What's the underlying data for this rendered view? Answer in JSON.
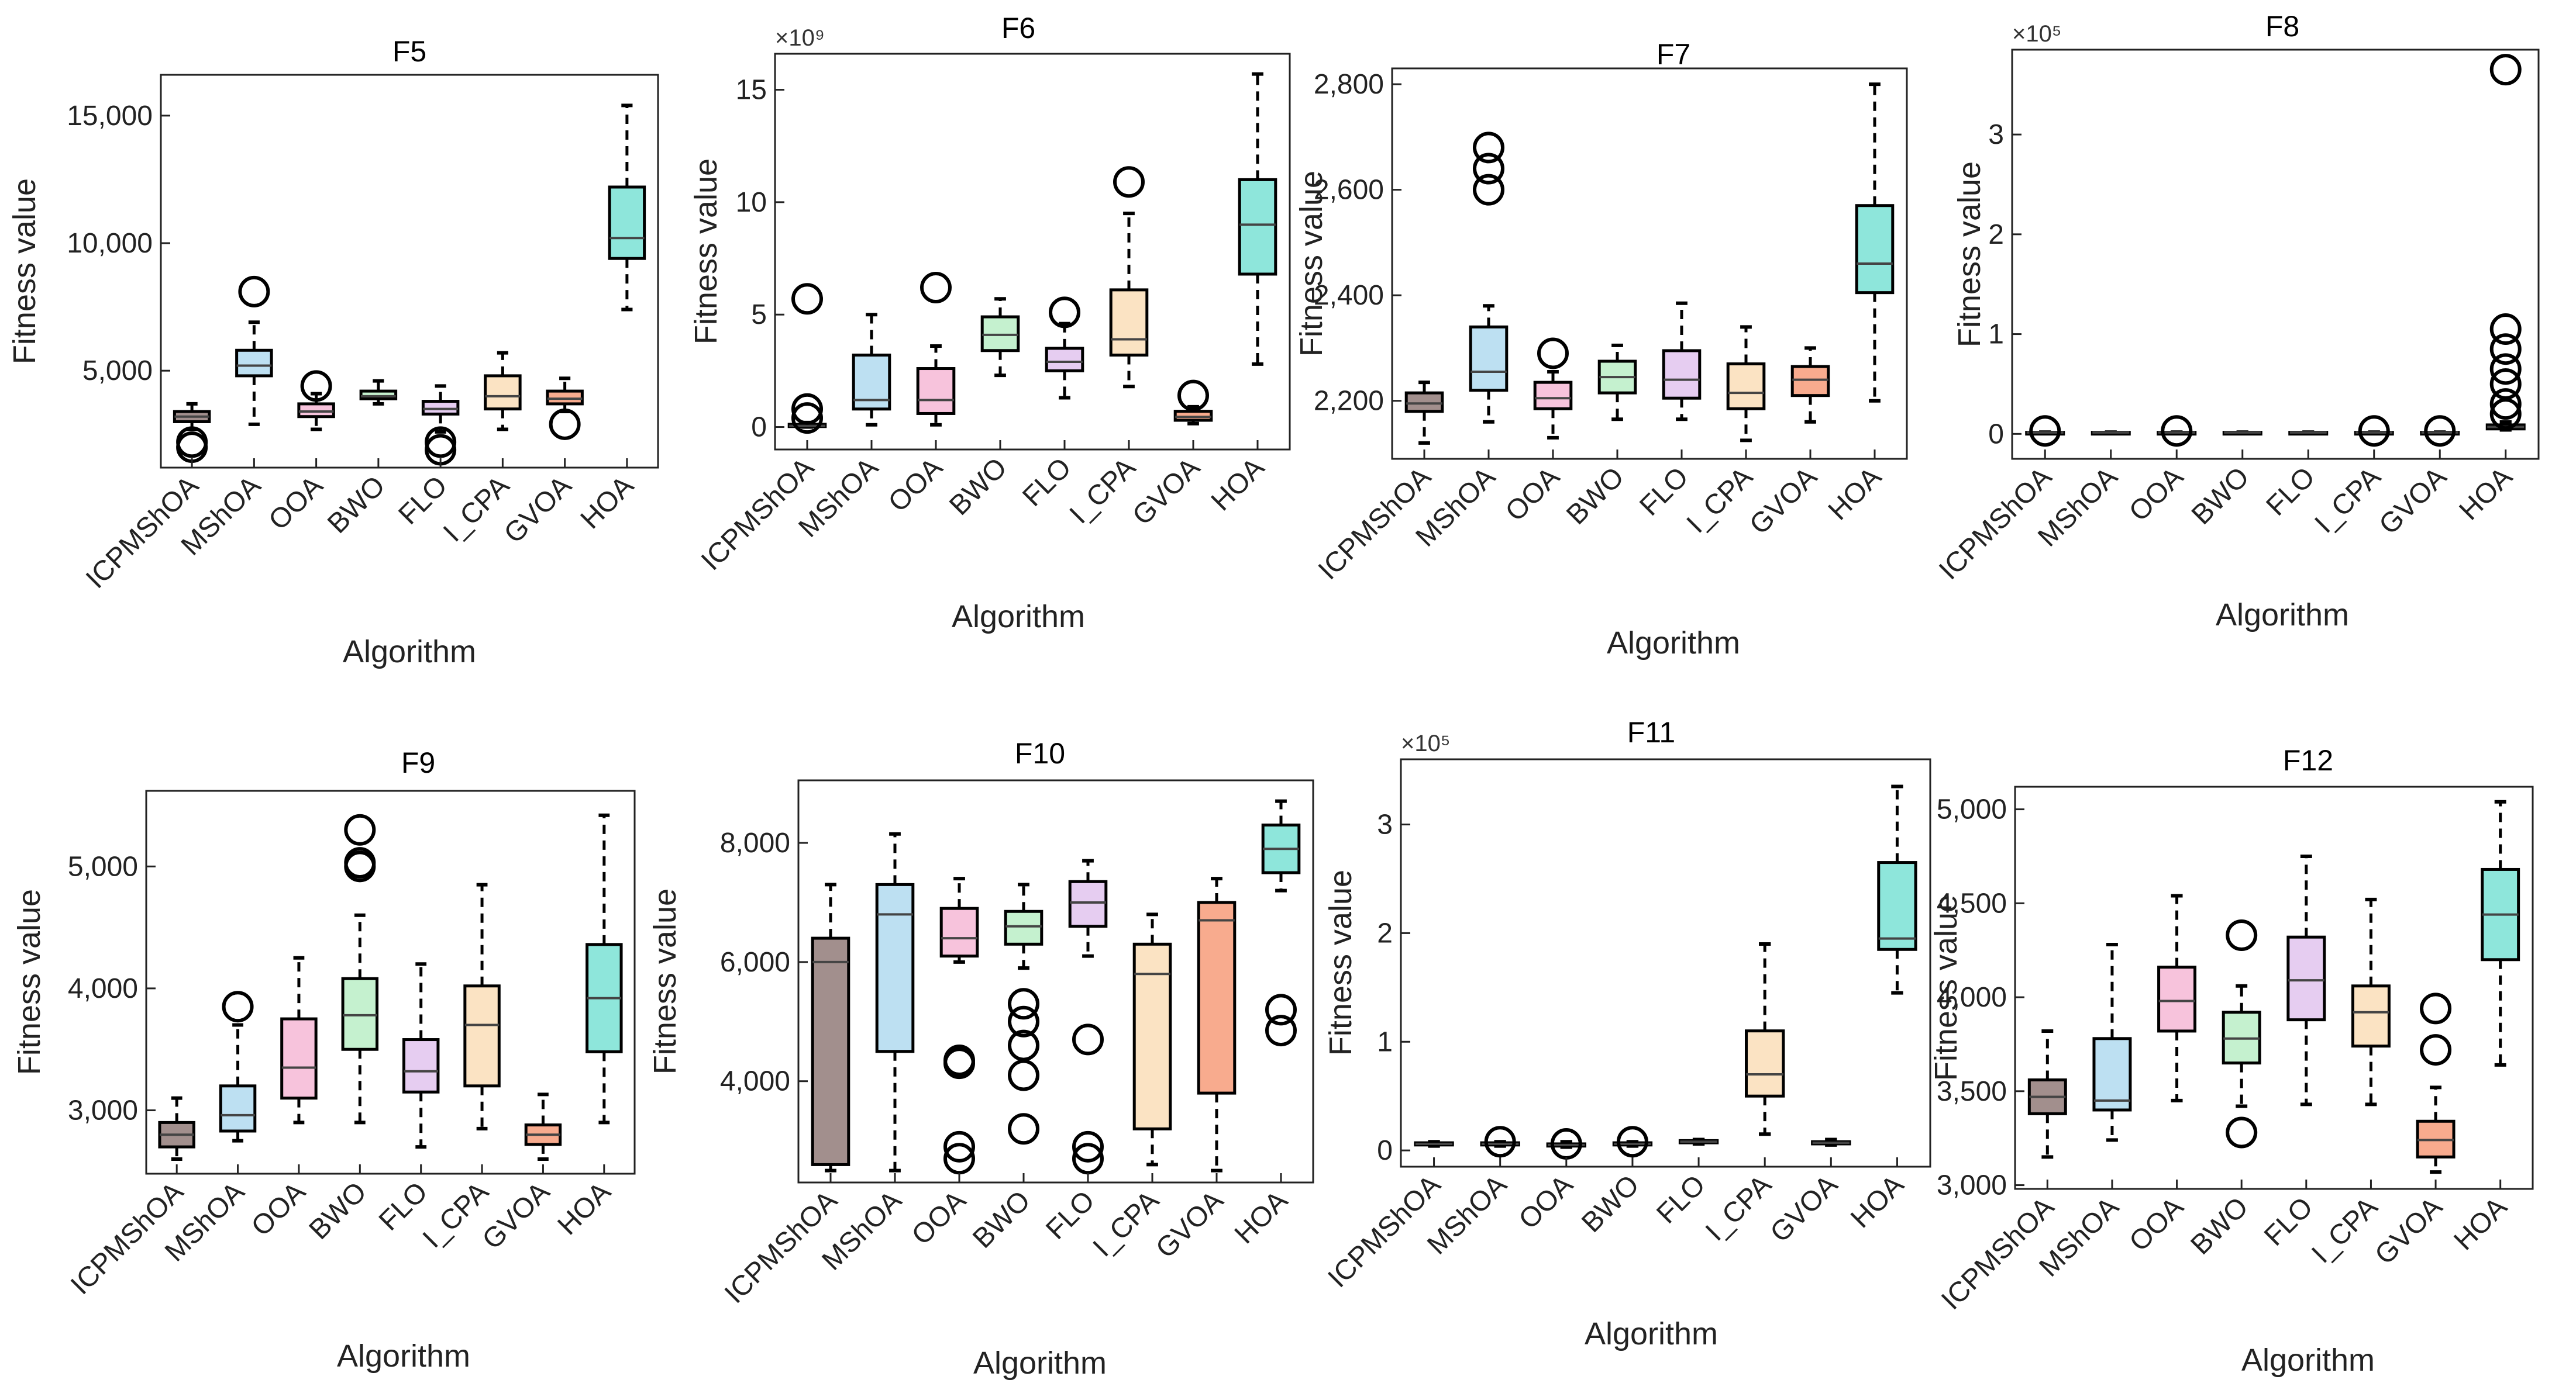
{
  "figure": {
    "colors": {
      "ICPMShOA": "#a28f8d",
      "MShOA": "#bde0f2",
      "OOA": "#f7c3dc",
      "BWO": "#c5f1cf",
      "FLO": "#e6cdf1",
      "I_CPA": "#fbe3c3",
      "GVOA": "#f8ab8e",
      "HOA": "#8ee6db"
    }
  },
  "chart_data": [
    {
      "id": "F5",
      "type": "boxplot",
      "title": "F5",
      "xlabel": "Algorithm",
      "ylabel": "Fitness value",
      "ylim": [
        1200,
        16600
      ],
      "yticks": [
        5000,
        10000,
        15000
      ],
      "ytick_labels": [
        "5,000",
        "10,000",
        "15,000"
      ],
      "multiplier": "",
      "categories": [
        "ICPMShOA",
        "MShOA",
        "OOA",
        "BWO",
        "FLO",
        "I_CPA",
        "GVOA",
        "HOA"
      ],
      "boxes": [
        {
          "whislo": 2700,
          "q1": 3000,
          "med": 3200,
          "q3": 3400,
          "whishi": 3700,
          "fliers": [
            2000,
            2200
          ]
        },
        {
          "whislo": 2900,
          "q1": 4800,
          "med": 5200,
          "q3": 5800,
          "whishi": 6900,
          "fliers": [
            8100
          ]
        },
        {
          "whislo": 2700,
          "q1": 3200,
          "med": 3400,
          "q3": 3700,
          "whishi": 4100,
          "fliers": [
            4400
          ]
        },
        {
          "whislo": 3700,
          "q1": 3900,
          "med": 4000,
          "q3": 4200,
          "whishi": 4600,
          "fliers": []
        },
        {
          "whislo": 2600,
          "q1": 3300,
          "med": 3500,
          "q3": 3800,
          "whishi": 4400,
          "fliers": [
            1900,
            2200
          ]
        },
        {
          "whislo": 2700,
          "q1": 3500,
          "med": 4000,
          "q3": 4800,
          "whishi": 5700,
          "fliers": []
        },
        {
          "whislo": 3400,
          "q1": 3700,
          "med": 3900,
          "q3": 4200,
          "whishi": 4700,
          "fliers": [
            2900
          ]
        },
        {
          "whislo": 7400,
          "q1": 9400,
          "med": 10200,
          "q3": 12200,
          "whishi": 15400,
          "fliers": []
        }
      ]
    },
    {
      "id": "F6",
      "type": "boxplot",
      "title": "F6",
      "xlabel": "Algorithm",
      "ylabel": "Fitness value",
      "ylim": [
        -1,
        16.6
      ],
      "yticks": [
        0,
        5,
        10,
        15
      ],
      "ytick_labels": [
        "0",
        "5",
        "10",
        "15"
      ],
      "multiplier": "×10⁹",
      "categories": [
        "ICPMShOA",
        "MShOA",
        "OOA",
        "BWO",
        "FLO",
        "I_CPA",
        "GVOA",
        "HOA"
      ],
      "boxes": [
        {
          "whislo": 0,
          "q1": 0.02,
          "med": 0.05,
          "q3": 0.12,
          "whishi": 0.2,
          "fliers": [
            0.4,
            0.8,
            5.7
          ]
        },
        {
          "whislo": 0.1,
          "q1": 0.8,
          "med": 1.2,
          "q3": 3.2,
          "whishi": 5.0,
          "fliers": []
        },
        {
          "whislo": 0.1,
          "q1": 0.6,
          "med": 1.2,
          "q3": 2.6,
          "whishi": 3.6,
          "fliers": [
            6.2
          ]
        },
        {
          "whislo": 2.3,
          "q1": 3.4,
          "med": 4.1,
          "q3": 4.9,
          "whishi": 5.7,
          "fliers": []
        },
        {
          "whislo": 1.3,
          "q1": 2.5,
          "med": 2.9,
          "q3": 3.5,
          "whishi": 4.6,
          "fliers": [
            5.1
          ]
        },
        {
          "whislo": 1.8,
          "q1": 3.2,
          "med": 3.9,
          "q3": 6.1,
          "whishi": 9.5,
          "fliers": [
            10.9
          ]
        },
        {
          "whislo": 0.15,
          "q1": 0.3,
          "med": 0.45,
          "q3": 0.7,
          "whishi": 0.9,
          "fliers": [
            1.4
          ]
        },
        {
          "whislo": 2.8,
          "q1": 6.8,
          "med": 9.0,
          "q3": 11.0,
          "whishi": 15.7,
          "fliers": []
        }
      ]
    },
    {
      "id": "F7",
      "type": "boxplot",
      "title": "F7",
      "xlabel": "Algorithm",
      "ylabel": "Fitness value",
      "ylim": [
        2090,
        2830
      ],
      "yticks": [
        2200,
        2400,
        2600,
        2800
      ],
      "ytick_labels": [
        "2,200",
        "2,400",
        "2,600",
        "2,800"
      ],
      "multiplier": "",
      "categories": [
        "ICPMShOA",
        "MShOA",
        "OOA",
        "BWO",
        "FLO",
        "I_CPA",
        "GVOA",
        "HOA"
      ],
      "boxes": [
        {
          "whislo": 2120,
          "q1": 2180,
          "med": 2195,
          "q3": 2215,
          "whishi": 2235,
          "fliers": []
        },
        {
          "whislo": 2160,
          "q1": 2220,
          "med": 2255,
          "q3": 2340,
          "whishi": 2380,
          "fliers": [
            2600,
            2640,
            2680
          ]
        },
        {
          "whislo": 2130,
          "q1": 2185,
          "med": 2205,
          "q3": 2235,
          "whishi": 2255,
          "fliers": [
            2290
          ]
        },
        {
          "whislo": 2165,
          "q1": 2215,
          "med": 2245,
          "q3": 2275,
          "whishi": 2305,
          "fliers": []
        },
        {
          "whislo": 2165,
          "q1": 2205,
          "med": 2240,
          "q3": 2295,
          "whishi": 2385,
          "fliers": []
        },
        {
          "whislo": 2125,
          "q1": 2185,
          "med": 2215,
          "q3": 2270,
          "whishi": 2340,
          "fliers": []
        },
        {
          "whislo": 2160,
          "q1": 2210,
          "med": 2240,
          "q3": 2265,
          "whishi": 2300,
          "fliers": []
        },
        {
          "whislo": 2200,
          "q1": 2405,
          "med": 2460,
          "q3": 2570,
          "whishi": 2800,
          "fliers": []
        }
      ]
    },
    {
      "id": "F8",
      "type": "boxplot",
      "title": "F8",
      "xlabel": "Algorithm",
      "ylabel": "Fitness value",
      "ylim": [
        -0.25,
        3.85
      ],
      "yticks": [
        0,
        1,
        2,
        3
      ],
      "ytick_labels": [
        "0",
        "1",
        "2",
        "3"
      ],
      "multiplier": "×10⁵",
      "categories": [
        "ICPMShOA",
        "MShOA",
        "OOA",
        "BWO",
        "FLO",
        "I_CPA",
        "GVOA",
        "HOA"
      ],
      "boxes": [
        {
          "whislo": 0.01,
          "q1": 0.012,
          "med": 0.014,
          "q3": 0.016,
          "whishi": 0.018,
          "fliers": [
            0.03
          ]
        },
        {
          "whislo": 0.01,
          "q1": 0.012,
          "med": 0.014,
          "q3": 0.016,
          "whishi": 0.018,
          "fliers": []
        },
        {
          "whislo": 0.01,
          "q1": 0.012,
          "med": 0.014,
          "q3": 0.016,
          "whishi": 0.018,
          "fliers": [
            0.03
          ]
        },
        {
          "whislo": 0.01,
          "q1": 0.012,
          "med": 0.014,
          "q3": 0.016,
          "whishi": 0.018,
          "fliers": []
        },
        {
          "whislo": 0.01,
          "q1": 0.012,
          "med": 0.014,
          "q3": 0.016,
          "whishi": 0.018,
          "fliers": []
        },
        {
          "whislo": 0.01,
          "q1": 0.012,
          "med": 0.014,
          "q3": 0.016,
          "whishi": 0.018,
          "fliers": [
            0.03
          ]
        },
        {
          "whislo": 0.01,
          "q1": 0.012,
          "med": 0.014,
          "q3": 0.016,
          "whishi": 0.018,
          "fliers": [
            0.03
          ]
        },
        {
          "whislo": 0.04,
          "q1": 0.05,
          "med": 0.07,
          "q3": 0.09,
          "whishi": 0.12,
          "fliers": [
            0.2,
            0.3,
            0.5,
            0.65,
            0.85,
            1.05,
            3.65
          ]
        }
      ]
    },
    {
      "id": "F9",
      "type": "boxplot",
      "title": "F9",
      "xlabel": "Algorithm",
      "ylabel": "Fitness value",
      "ylim": [
        2480,
        5620
      ],
      "yticks": [
        3000,
        4000,
        5000
      ],
      "ytick_labels": [
        "3,000",
        "4,000",
        "5,000"
      ],
      "multiplier": "",
      "categories": [
        "ICPMShOA",
        "MShOA",
        "OOA",
        "BWO",
        "FLO",
        "I_CPA",
        "GVOA",
        "HOA"
      ],
      "boxes": [
        {
          "whislo": 2600,
          "q1": 2700,
          "med": 2800,
          "q3": 2900,
          "whishi": 3100,
          "fliers": []
        },
        {
          "whislo": 2750,
          "q1": 2830,
          "med": 2960,
          "q3": 3200,
          "whishi": 3700,
          "fliers": [
            3850
          ]
        },
        {
          "whislo": 2900,
          "q1": 3100,
          "med": 3350,
          "q3": 3750,
          "whishi": 4250,
          "fliers": []
        },
        {
          "whislo": 2900,
          "q1": 3500,
          "med": 3780,
          "q3": 4080,
          "whishi": 4600,
          "fliers": [
            5000,
            5030,
            5300
          ]
        },
        {
          "whislo": 2700,
          "q1": 3150,
          "med": 3320,
          "q3": 3580,
          "whishi": 4200,
          "fliers": []
        },
        {
          "whislo": 2850,
          "q1": 3200,
          "med": 3700,
          "q3": 4020,
          "whishi": 4850,
          "fliers": []
        },
        {
          "whislo": 2600,
          "q1": 2720,
          "med": 2800,
          "q3": 2880,
          "whishi": 3130,
          "fliers": []
        },
        {
          "whislo": 2900,
          "q1": 3480,
          "med": 3920,
          "q3": 4360,
          "whishi": 5420,
          "fliers": []
        }
      ]
    },
    {
      "id": "F10",
      "type": "boxplot",
      "title": "F10",
      "xlabel": "Algorithm",
      "ylabel": "Fitness value",
      "ylim": [
        2300,
        9050
      ],
      "yticks": [
        4000,
        6000,
        8000
      ],
      "ytick_labels": [
        "4,000",
        "6,000",
        "8,000"
      ],
      "multiplier": "",
      "categories": [
        "ICPMShOA",
        "MShOA",
        "OOA",
        "BWO",
        "FLO",
        "I_CPA",
        "GVOA",
        "HOA"
      ],
      "boxes": [
        {
          "whislo": 2500,
          "q1": 2600,
          "med": 6000,
          "q3": 6400,
          "whishi": 7300,
          "fliers": []
        },
        {
          "whislo": 2500,
          "q1": 4500,
          "med": 6800,
          "q3": 7300,
          "whishi": 8150,
          "fliers": []
        },
        {
          "whislo": 6000,
          "q1": 6100,
          "med": 6400,
          "q3": 6900,
          "whishi": 7400,
          "fliers": [
            2700,
            2900,
            4300,
            4350
          ]
        },
        {
          "whislo": 5900,
          "q1": 6300,
          "med": 6600,
          "q3": 6850,
          "whishi": 7300,
          "fliers": [
            3200,
            4100,
            4600,
            5000,
            5300
          ]
        },
        {
          "whislo": 6100,
          "q1": 6600,
          "med": 7000,
          "q3": 7350,
          "whishi": 7700,
          "fliers": [
            2700,
            2900,
            4700
          ]
        },
        {
          "whislo": 2600,
          "q1": 3200,
          "med": 5800,
          "q3": 6300,
          "whishi": 6800,
          "fliers": []
        },
        {
          "whislo": 2500,
          "q1": 3800,
          "med": 6700,
          "q3": 7000,
          "whishi": 7400,
          "fliers": []
        },
        {
          "whislo": 7200,
          "q1": 7500,
          "med": 7900,
          "q3": 8300,
          "whishi": 8700,
          "fliers": [
            4850,
            5200
          ]
        }
      ]
    },
    {
      "id": "F11",
      "type": "boxplot",
      "title": "F11",
      "xlabel": "Algorithm",
      "ylabel": "Fitness value",
      "ylim": [
        -0.15,
        3.6
      ],
      "yticks": [
        0,
        1,
        2,
        3
      ],
      "ytick_labels": [
        "0",
        "1",
        "2",
        "3"
      ],
      "multiplier": "×10⁵",
      "categories": [
        "ICPMShOA",
        "MShOA",
        "OOA",
        "BWO",
        "FLO",
        "I_CPA",
        "GVOA",
        "HOA"
      ],
      "boxes": [
        {
          "whislo": 0.04,
          "q1": 0.05,
          "med": 0.06,
          "q3": 0.07,
          "whishi": 0.08,
          "fliers": []
        },
        {
          "whislo": 0.04,
          "q1": 0.05,
          "med": 0.06,
          "q3": 0.07,
          "whishi": 0.08,
          "fliers": [
            0.08
          ]
        },
        {
          "whislo": 0.03,
          "q1": 0.04,
          "med": 0.05,
          "q3": 0.06,
          "whishi": 0.08,
          "fliers": [
            0.06
          ]
        },
        {
          "whislo": 0.04,
          "q1": 0.05,
          "med": 0.06,
          "q3": 0.07,
          "whishi": 0.08,
          "fliers": [
            0.08
          ]
        },
        {
          "whislo": 0.06,
          "q1": 0.07,
          "med": 0.08,
          "q3": 0.09,
          "whishi": 0.1,
          "fliers": []
        },
        {
          "whislo": 0.15,
          "q1": 0.5,
          "med": 0.7,
          "q3": 1.1,
          "whishi": 1.9,
          "fliers": []
        },
        {
          "whislo": 0.05,
          "q1": 0.06,
          "med": 0.07,
          "q3": 0.08,
          "whishi": 0.1,
          "fliers": []
        },
        {
          "whislo": 1.45,
          "q1": 1.85,
          "med": 1.95,
          "q3": 2.65,
          "whishi": 3.35,
          "fliers": []
        }
      ]
    },
    {
      "id": "F12",
      "type": "boxplot",
      "title": "F12",
      "xlabel": "Algorithm",
      "ylabel": "Fitness value",
      "ylim": [
        2980,
        5120
      ],
      "yticks": [
        3000,
        3500,
        4000,
        4500,
        5000
      ],
      "ytick_labels": [
        "3,000",
        "3,500",
        "4,000",
        "4,500",
        "5,000"
      ],
      "multiplier": "",
      "categories": [
        "ICPMShOA",
        "MShOA",
        "OOA",
        "BWO",
        "FLO",
        "I_CPA",
        "GVOA",
        "HOA"
      ],
      "boxes": [
        {
          "whislo": 3150,
          "q1": 3380,
          "med": 3470,
          "q3": 3560,
          "whishi": 3820,
          "fliers": []
        },
        {
          "whislo": 3240,
          "q1": 3400,
          "med": 3450,
          "q3": 3780,
          "whishi": 4280,
          "fliers": []
        },
        {
          "whislo": 3450,
          "q1": 3820,
          "med": 3980,
          "q3": 4160,
          "whishi": 4540,
          "fliers": []
        },
        {
          "whislo": 3420,
          "q1": 3650,
          "med": 3780,
          "q3": 3920,
          "whishi": 4060,
          "fliers": [
            3280,
            4330
          ]
        },
        {
          "whislo": 3430,
          "q1": 3880,
          "med": 4090,
          "q3": 4320,
          "whishi": 4750,
          "fliers": []
        },
        {
          "whislo": 3430,
          "q1": 3740,
          "med": 3920,
          "q3": 4060,
          "whishi": 4520,
          "fliers": []
        },
        {
          "whislo": 3070,
          "q1": 3150,
          "med": 3240,
          "q3": 3340,
          "whishi": 3520,
          "fliers": [
            3720,
            3940
          ]
        },
        {
          "whislo": 3640,
          "q1": 4200,
          "med": 4440,
          "q3": 4680,
          "whishi": 5040,
          "fliers": []
        }
      ]
    }
  ]
}
